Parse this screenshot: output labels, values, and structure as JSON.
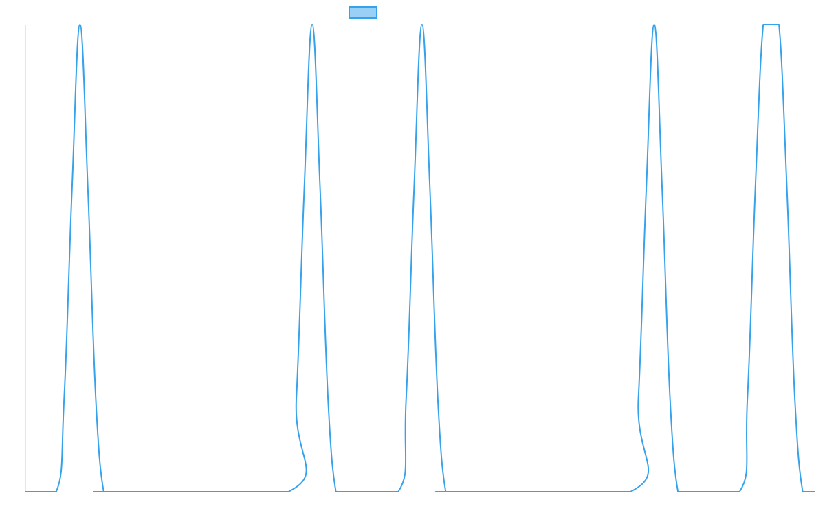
{
  "chart_data": {
    "type": "line",
    "title": "",
    "xlabel": "",
    "ylabel": "",
    "xlim": [
      0,
      100
    ],
    "ylim": [
      0,
      1
    ],
    "grid": false,
    "legend": {
      "position": "top-center",
      "entries": [
        ""
      ]
    },
    "colors": {
      "series": "#36a2eb",
      "legend_fill": "#9ad0f5",
      "axis": "#e6e6e6"
    },
    "series": [
      {
        "name": "",
        "x": [
          0,
          3.9,
          4.9,
          5.9,
          6.9,
          7.9,
          8.9,
          9.9,
          10.9,
          33.3,
          34.3,
          35.3,
          36.3,
          37.3,
          38.3,
          39.3,
          40.3,
          47.2,
          48.2,
          49.2,
          50.2,
          51.2,
          52.2,
          53.2,
          54.2,
          76.6,
          77.6,
          78.6,
          79.6,
          80.6,
          81.6,
          82.6,
          83.6,
          90.4,
          91.4,
          92.4,
          93.4,
          94.4,
          95.4,
          96.4,
          97.4,
          98.4,
          99.4,
          100
        ],
        "y": [
          0,
          0,
          0.2,
          0.65,
          1,
          0.65,
          0.2,
          0,
          0,
          0,
          0.2,
          0.65,
          1,
          0.65,
          0.2,
          0,
          0,
          0,
          0.2,
          0.65,
          1,
          0.65,
          0.2,
          0,
          0,
          0,
          0.2,
          0.65,
          1,
          0.65,
          0.2,
          0,
          0,
          0,
          0.2,
          0.65,
          1,
          1,
          1,
          0.65,
          0.2,
          0,
          0,
          0
        ]
      }
    ]
  }
}
